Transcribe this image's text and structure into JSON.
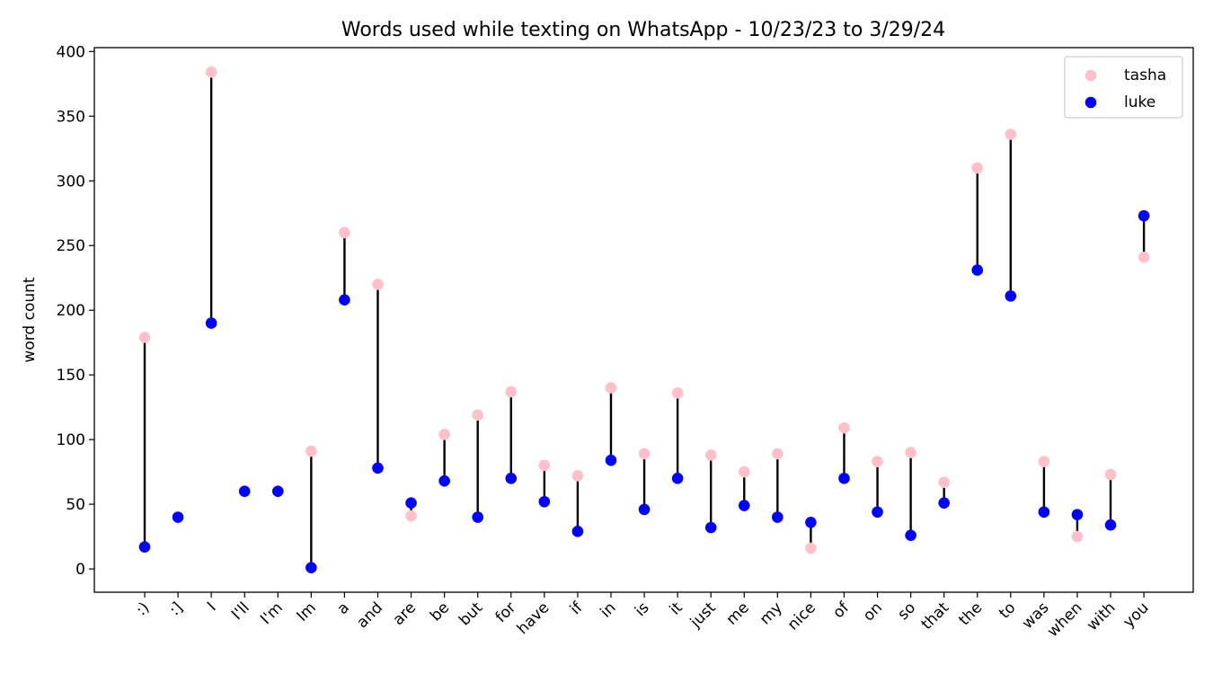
{
  "chart_data": {
    "type": "scatter",
    "title": "Words used while texting on WhatsApp - 10/23/23 to 3/29/24",
    "xlabel": "",
    "ylabel": "word count",
    "ylim": [
      -18,
      403
    ],
    "yticks": [
      0,
      50,
      100,
      150,
      200,
      250,
      300,
      350,
      400
    ],
    "grid": false,
    "legend_position": "top-right",
    "connector_color": "#000000",
    "categories": [
      ":)",
      ":]",
      "I",
      "I'll",
      "I'm",
      "Im",
      "a",
      "and",
      "are",
      "be",
      "but",
      "for",
      "have",
      "if",
      "in",
      "is",
      "it",
      "just",
      "me",
      "my",
      "nice",
      "of",
      "on",
      "so",
      "that",
      "the",
      "to",
      "was",
      "when",
      "with",
      "you"
    ],
    "series": [
      {
        "name": "tasha",
        "color": "#ffc0cb",
        "values": [
          179,
          null,
          384,
          null,
          null,
          91,
          260,
          220,
          41,
          104,
          119,
          137,
          80,
          72,
          140,
          89,
          136,
          88,
          75,
          89,
          16,
          109,
          83,
          90,
          67,
          310,
          336,
          83,
          25,
          73,
          241
        ]
      },
      {
        "name": "luke",
        "color": "#0000ff",
        "values": [
          17,
          40,
          190,
          60,
          60,
          1,
          208,
          78,
          51,
          68,
          40,
          70,
          52,
          29,
          84,
          46,
          70,
          32,
          49,
          40,
          36,
          70,
          44,
          26,
          51,
          231,
          211,
          44,
          42,
          34,
          273
        ]
      }
    ]
  }
}
